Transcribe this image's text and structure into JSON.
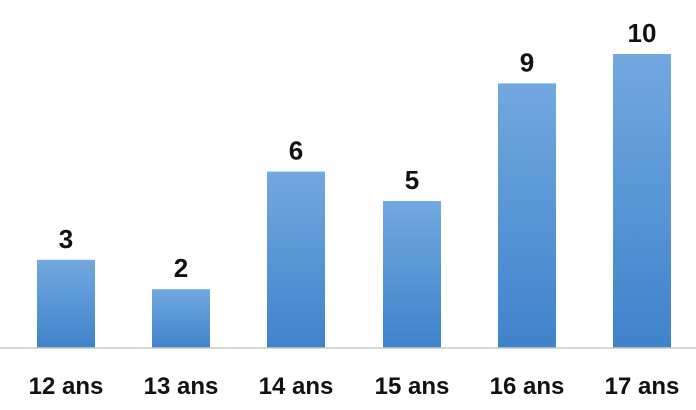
{
  "chart_data": {
    "type": "bar",
    "categories": [
      "12 ans",
      "13 ans",
      "14 ans",
      "15 ans",
      "16 ans",
      "17 ans"
    ],
    "values": [
      3,
      2,
      6,
      5,
      9,
      10
    ],
    "data_labels": [
      "3",
      "2",
      "6",
      "5",
      "9",
      "10"
    ],
    "title": "",
    "xlabel": "",
    "ylabel": "",
    "ylim": [
      0,
      10
    ],
    "grid": false,
    "legend": "none",
    "bar_color_top": "#72a8df",
    "bar_color_bottom": "#3f83cb",
    "axis_color": "#c8c8c8",
    "label_color": "#111111"
  }
}
